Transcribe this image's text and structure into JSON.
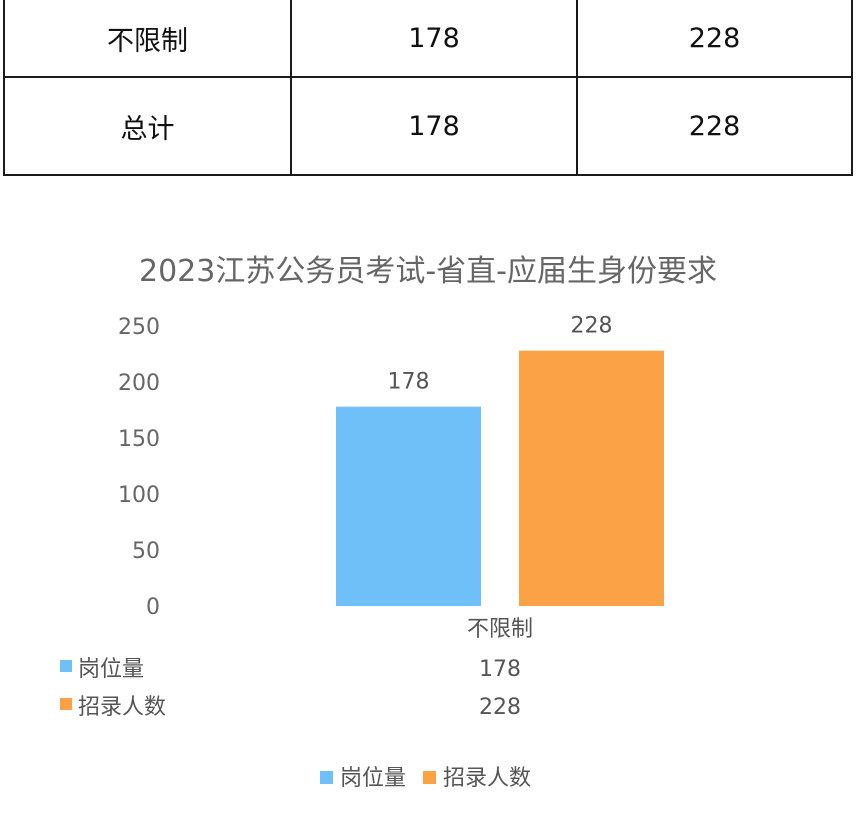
{
  "summary_table": {
    "rows": [
      {
        "label": "不限制",
        "positions": "178",
        "recruits": "228"
      },
      {
        "label": "总计",
        "positions": "178",
        "recruits": "228"
      }
    ]
  },
  "chart_data": {
    "type": "bar",
    "title": "2023江苏公务员考试-省直-应届生身份要求",
    "categories": [
      "不限制"
    ],
    "series": [
      {
        "name": "岗位量",
        "values": [
          178
        ],
        "color": "#6fbff8"
      },
      {
        "name": "招录人数",
        "values": [
          228
        ],
        "color": "#fba246"
      }
    ],
    "y_ticks": [
      0,
      50,
      100,
      150,
      200,
      250
    ],
    "ylim": [
      0,
      250
    ],
    "grid": false,
    "data_labels": true,
    "data_table": true,
    "legend": "bottom"
  }
}
